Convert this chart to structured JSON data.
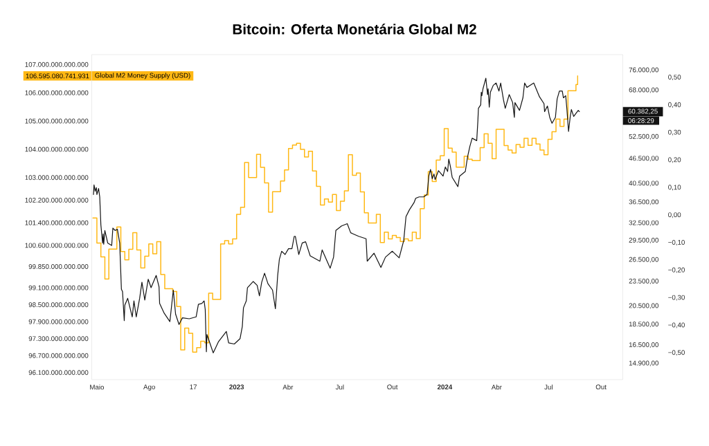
{
  "chart_data": {
    "type": "line",
    "title": "Bitcoin: Oferta Monetária Global M2",
    "annotations": [
      "06:28:29"
    ],
    "log": "y2",
    "xlim": [
      "2022-04-22",
      "2024-11-08"
    ],
    "xticks": [
      {
        "value": "2022-05-01",
        "label": "Maio"
      },
      {
        "value": "2022-08-01",
        "label": "Ago"
      },
      {
        "value": "2022-10-17",
        "label": "17"
      },
      {
        "value": "2023-01-01",
        "label": "2023"
      },
      {
        "value": "2023-04-01",
        "label": "Abr"
      },
      {
        "value": "2023-07-01",
        "label": "Jul"
      },
      {
        "value": "2023-10-01",
        "label": "Out"
      },
      {
        "value": "2024-01-01",
        "label": "2024"
      },
      {
        "value": "2024-04-01",
        "label": "Abr"
      },
      {
        "value": "2024-07-01",
        "label": "Jul"
      },
      {
        "value": "2024-10-01",
        "label": "Out"
      }
    ],
    "ylim": [
      95850000000000,
      107350000000000
    ],
    "yticks": [
      {
        "value": 107000000000000,
        "label": "107.000.000.000.000"
      },
      {
        "value": 106595080741931,
        "label": "106.595.080.741.931"
      },
      {
        "value": 106000000000000,
        "label": "106.000.000.000.000"
      },
      {
        "value": 105000000000000,
        "label": "105.000.000.000.000"
      },
      {
        "value": 104000000000000,
        "label": "104.000.000.000.000"
      },
      {
        "value": 103000000000000,
        "label": "103.000.000.000.000"
      },
      {
        "value": 102200000000000,
        "label": "102.200.000.000.000"
      },
      {
        "value": 101400000000000,
        "label": "101.400.000.000.000"
      },
      {
        "value": 100600000000000,
        "label": "100.600.000.000.000"
      },
      {
        "value": 99850000000000,
        "label": "99.850.000.000.000"
      },
      {
        "value": 99100000000000,
        "label": "99.100.000.000.000"
      },
      {
        "value": 98500000000000,
        "label": "98.500.000.000.000"
      },
      {
        "value": 97900000000000,
        "label": "97.900.000.000.000"
      },
      {
        "value": 97300000000000,
        "label": "97.300.000.000.000"
      },
      {
        "value": 96700000000000,
        "label": "96.700.000.000.000"
      },
      {
        "value": 96100000000000,
        "label": "96.100.000.000.000"
      }
    ],
    "y2lim": [
      13620,
      82900
    ],
    "y2ticks": [
      {
        "value": 76000,
        "label": "76.000,00"
      },
      {
        "value": 68000,
        "label": "68.000,00"
      },
      {
        "value": 60382.25,
        "label": "60.382,25"
      },
      {
        "value": 52500,
        "label": "52.500,00"
      },
      {
        "value": 46500,
        "label": "46.500,00"
      },
      {
        "value": 40500,
        "label": "40.500,00"
      },
      {
        "value": 36500,
        "label": "36.500,00"
      },
      {
        "value": 32500,
        "label": "32.500,00"
      },
      {
        "value": 29500,
        "label": "29.500,00"
      },
      {
        "value": 26500,
        "label": "26.500,00"
      },
      {
        "value": 23500,
        "label": "23.500,00"
      },
      {
        "value": 20500,
        "label": "20.500,00"
      },
      {
        "value": 18500,
        "label": "18.500,00"
      },
      {
        "value": 16500,
        "label": "16.500,00"
      },
      {
        "value": 14900,
        "label": "14.900,00"
      }
    ],
    "y3lim": [
      -0.597,
      0.583
    ],
    "y3ticks": [
      {
        "value": 0.5,
        "label": "0,50"
      },
      {
        "value": 0.4,
        "label": "0,40"
      },
      {
        "value": 0.3,
        "label": "0,30"
      },
      {
        "value": 0.2,
        "label": "0,20"
      },
      {
        "value": 0.1,
        "label": "0,10"
      },
      {
        "value": 0,
        "label": "0,00"
      },
      {
        "value": -0.1,
        "label": "−0,10"
      },
      {
        "value": -0.2,
        "label": "−0,20"
      },
      {
        "value": -0.3,
        "label": "−0,30"
      },
      {
        "value": -0.4,
        "label": "−0,40"
      },
      {
        "value": -0.5,
        "label": "−0,50"
      }
    ],
    "series": [
      {
        "name": "Global M2 Money Supply (USD)",
        "type": "step",
        "axis": "y",
        "color": "#ffb814",
        "x": [
          "2022-04-24",
          "2022-05-01",
          "2022-05-08",
          "2022-05-15",
          "2022-05-22",
          "2022-06-05",
          "2022-06-12",
          "2022-06-19",
          "2022-06-26",
          "2022-07-03",
          "2022-07-10",
          "2022-07-17",
          "2022-07-24",
          "2022-07-31",
          "2022-08-07",
          "2022-08-14",
          "2022-08-21",
          "2022-08-28",
          "2022-09-11",
          "2022-09-18",
          "2022-09-25",
          "2022-10-02",
          "2022-10-09",
          "2022-10-16",
          "2022-10-23",
          "2022-10-30",
          "2022-11-06",
          "2022-11-13",
          "2022-11-20",
          "2022-12-04",
          "2022-12-11",
          "2022-12-18",
          "2022-12-25",
          "2023-01-01",
          "2023-01-08",
          "2023-01-15",
          "2023-01-22",
          "2023-02-05",
          "2023-02-12",
          "2023-02-19",
          "2023-02-26",
          "2023-03-05",
          "2023-03-19",
          "2023-03-26",
          "2023-04-02",
          "2023-04-09",
          "2023-04-16",
          "2023-04-23",
          "2023-04-30",
          "2023-05-07",
          "2023-05-14",
          "2023-05-21",
          "2023-05-28",
          "2023-06-04",
          "2023-06-11",
          "2023-06-18",
          "2023-06-25",
          "2023-07-02",
          "2023-07-09",
          "2023-07-16",
          "2023-07-23",
          "2023-07-30",
          "2023-08-06",
          "2023-08-13",
          "2023-08-20",
          "2023-09-03",
          "2023-09-10",
          "2023-09-17",
          "2023-09-24",
          "2023-10-01",
          "2023-10-08",
          "2023-10-15",
          "2023-10-22",
          "2023-10-29",
          "2023-11-05",
          "2023-11-12",
          "2023-11-19",
          "2023-11-26",
          "2023-12-03",
          "2023-12-10",
          "2023-12-17",
          "2023-12-24",
          "2023-12-31",
          "2024-01-07",
          "2024-01-14",
          "2024-01-21",
          "2024-02-04",
          "2024-02-11",
          "2024-02-18",
          "2024-03-03",
          "2024-03-10",
          "2024-03-17",
          "2024-03-24",
          "2024-03-31",
          "2024-04-14",
          "2024-04-21",
          "2024-04-28",
          "2024-05-05",
          "2024-05-12",
          "2024-05-19",
          "2024-05-26",
          "2024-06-02",
          "2024-06-09",
          "2024-06-16",
          "2024-06-23",
          "2024-06-30",
          "2024-07-07",
          "2024-07-14",
          "2024-07-21",
          "2024-07-28",
          "2024-08-04",
          "2024-08-18",
          "2024-08-21"
        ],
        "values": [
          101570000000000,
          100680000000000,
          100190000000000,
          99410000000000,
          100470000000000,
          101250000000000,
          100380000000000,
          100090000000000,
          100460000000000,
          101050000000000,
          100440000000000,
          99800000000000,
          100220000000000,
          100650000000000,
          100300000000000,
          100730000000000,
          99570000000000,
          99070000000000,
          98970000000000,
          98440000000000,
          96900000000000,
          97670000000000,
          97490000000000,
          96820000000000,
          96980000000000,
          97210000000000,
          97150000000000,
          98910000000000,
          98690000000000,
          100650000000000,
          100770000000000,
          100650000000000,
          100830000000000,
          101700000000000,
          101950000000000,
          103530000000000,
          103000000000000,
          103820000000000,
          103360000000000,
          102810000000000,
          101780000000000,
          102500000000000,
          102880000000000,
          103270000000000,
          104030000000000,
          104150000000000,
          104210000000000,
          104000000000000,
          103730000000000,
          103930000000000,
          103230000000000,
          102690000000000,
          102030000000000,
          102240000000000,
          102130000000000,
          102400000000000,
          101830000000000,
          102160000000000,
          102530000000000,
          103810000000000,
          103080000000000,
          103160000000000,
          102490000000000,
          101750000000000,
          101390000000000,
          101700000000000,
          100700000000000,
          101070000000000,
          100830000000000,
          100950000000000,
          100880000000000,
          100740000000000,
          100830000000000,
          100760000000000,
          101070000000000,
          100840000000000,
          101900000000000,
          102380000000000,
          103210000000000,
          102860000000000,
          103620000000000,
          103770000000000,
          104730000000000,
          104040000000000,
          103900000000000,
          103370000000000,
          103750000000000,
          103650000000000,
          103600000000000,
          104060000000000,
          104550000000000,
          104210000000000,
          103670000000000,
          104710000000000,
          104130000000000,
          103970000000000,
          103870000000000,
          104170000000000,
          104070000000000,
          104390000000000,
          104140000000000,
          104390000000000,
          104190000000000,
          103970000000000,
          103810000000000,
          104350000000000,
          104620000000000,
          105070000000000,
          104810000000000,
          105070000000000,
          106070000000000,
          106290000000000,
          106595080741931
        ]
      },
      {
        "axis": "y2",
        "color": "#131313",
        "x": [
          "2022-04-25",
          "2022-04-26",
          "2022-04-28",
          "2022-04-30",
          "2022-05-01",
          "2022-05-04",
          "2022-05-06",
          "2022-05-08",
          "2022-05-11",
          "2022-05-12",
          "2022-05-13",
          "2022-05-15",
          "2022-05-20",
          "2022-05-27",
          "2022-05-29",
          "2022-06-02",
          "2022-06-06",
          "2022-06-10",
          "2022-06-13",
          "2022-06-15",
          "2022-06-18",
          "2022-06-19",
          "2022-06-24",
          "2022-07-02",
          "2022-07-05",
          "2022-07-09",
          "2022-07-15",
          "2022-07-19",
          "2022-07-24",
          "2022-07-30",
          "2022-08-04",
          "2022-08-13",
          "2022-08-18",
          "2022-08-19",
          "2022-08-27",
          "2022-09-06",
          "2022-09-12",
          "2022-09-16",
          "2022-09-22",
          "2022-09-28",
          "2022-10-10",
          "2022-10-22",
          "2022-10-26",
          "2022-11-01",
          "2022-11-05",
          "2022-11-07",
          "2022-11-09",
          "2022-11-10",
          "2022-11-21",
          "2022-11-30",
          "2022-12-14",
          "2022-12-18",
          "2022-12-28",
          "2023-01-07",
          "2023-01-11",
          "2023-01-13",
          "2023-01-18",
          "2023-01-20",
          "2023-01-30",
          "2023-02-06",
          "2023-02-10",
          "2023-02-14",
          "2023-02-19",
          "2023-02-25",
          "2023-03-05",
          "2023-03-10",
          "2023-03-14",
          "2023-03-17",
          "2023-03-21",
          "2023-03-27",
          "2023-04-02",
          "2023-04-08",
          "2023-04-12",
          "2023-04-14",
          "2023-04-20",
          "2023-04-26",
          "2023-05-02",
          "2023-05-10",
          "2023-05-27",
          "2023-05-31",
          "2023-06-14",
          "2023-06-20",
          "2023-06-24",
          "2023-07-04",
          "2023-07-14",
          "2023-07-20",
          "2023-08-03",
          "2023-08-16",
          "2023-08-18",
          "2023-08-30",
          "2023-09-11",
          "2023-09-19",
          "2023-10-01",
          "2023-10-13",
          "2023-10-21",
          "2023-10-25",
          "2023-10-31",
          "2023-11-08",
          "2023-11-11",
          "2023-11-17",
          "2023-11-25",
          "2023-12-01",
          "2023-12-04",
          "2023-12-07",
          "2023-12-10",
          "2023-12-13",
          "2023-12-15",
          "2023-12-21",
          "2023-12-29",
          "2024-01-02",
          "2024-01-06",
          "2024-01-08",
          "2024-01-11",
          "2024-01-14",
          "2024-01-24",
          "2024-01-27",
          "2024-02-06",
          "2024-02-10",
          "2024-02-14",
          "2024-02-18",
          "2024-02-26",
          "2024-02-28",
          "2024-02-29",
          "2024-03-04",
          "2024-03-05",
          "2024-03-06",
          "2024-03-08",
          "2024-03-13",
          "2024-03-16",
          "2024-03-17",
          "2024-03-19",
          "2024-03-21",
          "2024-03-26",
          "2024-03-31",
          "2024-04-05",
          "2024-04-08",
          "2024-04-13",
          "2024-04-16",
          "2024-04-23",
          "2024-04-29",
          "2024-05-02",
          "2024-05-03",
          "2024-05-11",
          "2024-05-17",
          "2024-05-20",
          "2024-05-24",
          "2024-06-05",
          "2024-06-15",
          "2024-06-23",
          "2024-06-24",
          "2024-06-29",
          "2024-07-03",
          "2024-07-07",
          "2024-07-13",
          "2024-07-16",
          "2024-07-20",
          "2024-07-25",
          "2024-07-27",
          "2024-07-31",
          "2024-08-02",
          "2024-08-05",
          "2024-08-08",
          "2024-08-10",
          "2024-08-14",
          "2024-08-22",
          "2024-08-24"
        ],
        "values": [
          38100,
          40200,
          38800,
          39600,
          38100,
          39400,
          37600,
          32200,
          29100,
          30600,
          28900,
          31200,
          29100,
          28700,
          31600,
          31200,
          31400,
          29100,
          22500,
          22200,
          18900,
          20600,
          21400,
          19300,
          21100,
          19300,
          21400,
          23400,
          21200,
          23800,
          22700,
          24300,
          22800,
          20800,
          19700,
          18800,
          22400,
          19600,
          18500,
          19200,
          19100,
          19300,
          20700,
          20800,
          21100,
          20100,
          15900,
          17500,
          15800,
          16800,
          17800,
          16700,
          16600,
          17100,
          18300,
          20300,
          21100,
          22700,
          23500,
          23000,
          21700,
          23400,
          24600,
          23200,
          22400,
          20200,
          24300,
          26600,
          27800,
          27300,
          28200,
          28200,
          30200,
          30200,
          27300,
          29100,
          29300,
          27100,
          26300,
          28000,
          25300,
          26900,
          31200,
          32000,
          32400,
          30800,
          30200,
          29800,
          26300,
          27500,
          25400,
          26900,
          27800,
          26800,
          29500,
          33700,
          35000,
          36400,
          37300,
          37600,
          37600,
          38100,
          42200,
          43800,
          41600,
          42700,
          41400,
          43500,
          42200,
          44400,
          43300,
          46400,
          44400,
          41900,
          39800,
          42200,
          43300,
          47000,
          49800,
          52100,
          51400,
          57300,
          61500,
          62700,
          67300,
          66000,
          68600,
          72700,
          66400,
          68600,
          61900,
          67300,
          69900,
          70800,
          67700,
          70800,
          64400,
          61500,
          66400,
          63500,
          58500,
          63500,
          60800,
          65200,
          70800,
          69100,
          70800,
          65600,
          63100,
          60400,
          62300,
          58500,
          56600,
          58500,
          64800,
          67700,
          67700,
          65200,
          66000,
          61500,
          54100,
          58800,
          61100,
          58800,
          60800,
          60382.25
        ]
      }
    ]
  }
}
